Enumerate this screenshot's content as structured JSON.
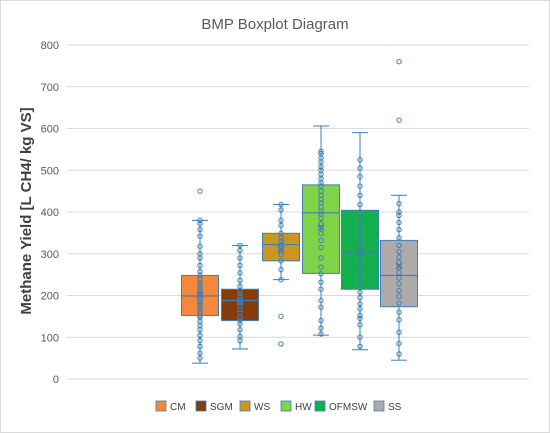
{
  "chart_data": {
    "type": "box",
    "title": "BMP Boxplot Diagram",
    "xlabel": "",
    "ylabel": "Methane Yield [L CH4/ kg VS]",
    "ylim": [
      0,
      800
    ],
    "yticks": [
      "0",
      "100",
      "200",
      "300",
      "400",
      "500",
      "600",
      "700",
      "800"
    ],
    "grid": true,
    "legend": "bottom",
    "series": [
      {
        "name": "CM",
        "color": "#f5883a",
        "edge": "#3e7fb5",
        "min": 38,
        "q1": 152,
        "median": 199,
        "q3": 248,
        "max": 380,
        "mean": 202,
        "points": [
          50,
          62,
          78,
          92,
          105,
          118,
          128,
          138,
          148,
          152,
          158,
          163,
          170,
          176,
          182,
          188,
          193,
          199,
          205,
          212,
          218,
          225,
          232,
          240,
          248,
          258,
          272,
          290,
          300,
          318,
          342,
          358,
          372,
          380,
          450
        ]
      },
      {
        "name": "SGM",
        "color": "#843c0c",
        "edge": "#3e7fb5",
        "min": 72,
        "q1": 140,
        "median": 188,
        "q3": 215,
        "max": 320,
        "mean": 185,
        "points": [
          92,
          102,
          118,
          132,
          140,
          148,
          158,
          166,
          175,
          183,
          190,
          198,
          205,
          212,
          222,
          236,
          254,
          272,
          290,
          308,
          320
        ]
      },
      {
        "name": "WS",
        "color": "#c9961e",
        "edge": "#3e7fb5",
        "min": 238,
        "q1": 283,
        "median": 322,
        "q3": 349,
        "max": 418,
        "mean": 310,
        "points": [
          84,
          150,
          238,
          262,
          283,
          298,
          308,
          316,
          322,
          330,
          338,
          349,
          368,
          380,
          405,
          418
        ]
      },
      {
        "name": "HW",
        "color": "#7ed446",
        "edge": "#3e7fb5",
        "min": 105,
        "q1": 253,
        "median": 398,
        "q3": 465,
        "max": 606,
        "mean": 362,
        "points": [
          108,
          122,
          140,
          172,
          188,
          215,
          232,
          252,
          268,
          290,
          315,
          332,
          348,
          362,
          372,
          385,
          395,
          402,
          412,
          422,
          430,
          440,
          450,
          462,
          470,
          480,
          490,
          500,
          508,
          520,
          530,
          540,
          545
        ]
      },
      {
        "name": "OFMSW",
        "color": "#12b04c",
        "edge": "#3e7fb5",
        "min": 70,
        "q1": 215,
        "median": 302,
        "q3": 404,
        "max": 590,
        "mean": 305,
        "points": [
          78,
          100,
          130,
          145,
          152,
          168,
          180,
          195,
          208,
          220,
          232,
          245,
          258,
          270,
          282,
          295,
          308,
          320,
          332,
          345,
          358,
          370,
          385,
          400,
          418,
          440,
          462,
          485,
          505,
          525
        ]
      },
      {
        "name": "SS",
        "color": "#aeaaaa",
        "edge": "#3e7fb5",
        "min": 45,
        "q1": 173,
        "median": 248,
        "q3": 332,
        "max": 440,
        "mean": 270,
        "points": [
          60,
          85,
          112,
          142,
          160,
          182,
          198,
          212,
          228,
          242,
          255,
          268,
          280,
          292,
          305,
          320,
          338,
          358,
          375,
          392,
          400,
          420,
          620,
          760
        ]
      }
    ]
  }
}
